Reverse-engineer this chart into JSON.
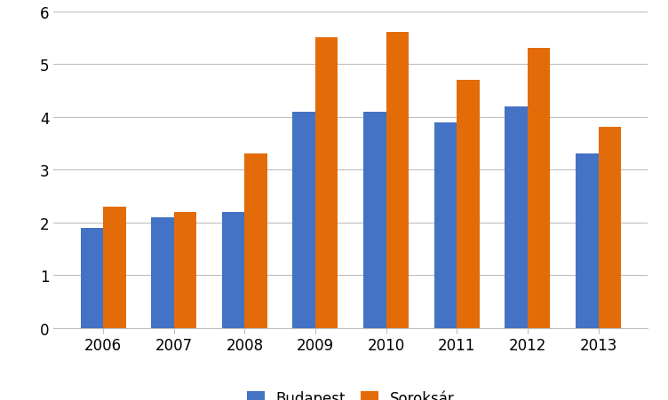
{
  "years": [
    2006,
    2007,
    2008,
    2009,
    2010,
    2011,
    2012,
    2013
  ],
  "budapest": [
    1.9,
    2.1,
    2.2,
    4.1,
    4.1,
    3.9,
    4.2,
    3.3
  ],
  "soroksar": [
    2.3,
    2.2,
    3.3,
    5.5,
    5.6,
    4.7,
    5.3,
    3.8
  ],
  "budapest_color": "#4472C4",
  "soroksar_color": "#E36C09",
  "legend_labels": [
    "Budapest",
    "Soroksár"
  ],
  "ylim": [
    0,
    6
  ],
  "yticks": [
    0,
    1,
    2,
    3,
    4,
    5,
    6
  ],
  "background_color": "#FFFFFF",
  "grid_color": "#BEBEBE",
  "bar_width": 0.32,
  "tick_fontsize": 12,
  "legend_fontsize": 12
}
